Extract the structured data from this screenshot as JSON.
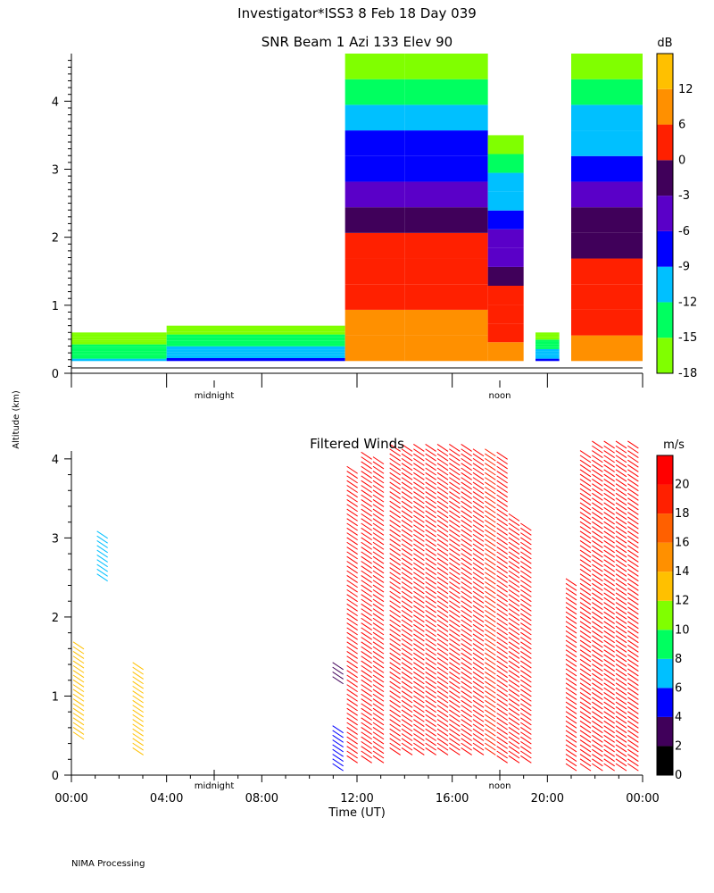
{
  "page": {
    "title": "Investigator*ISS3    8 Feb 18 Day 039",
    "footer": "NIMA Processing",
    "shared_ylabel": "Altitude (km)"
  },
  "chart_data": [
    {
      "type": "heatmap",
      "title": "SNR Beam 1 Azi 133 Elev 90",
      "ylim": [
        0,
        4.7
      ],
      "yticks": [
        0,
        1,
        2,
        3,
        4
      ],
      "xlim_hours": [
        0,
        24
      ],
      "x_markers": [
        {
          "hour": 6,
          "label": "midnight"
        },
        {
          "hour": 18,
          "label": "noon"
        }
      ],
      "colorbar": {
        "unit": "dB",
        "ticks": [
          -18,
          -15,
          -12,
          -9,
          -6,
          -3,
          0,
          6,
          12
        ],
        "bands": [
          {
            "from": -18,
            "to": -15,
            "color": "#80ff00"
          },
          {
            "from": -15,
            "to": -12,
            "color": "#00ff60"
          },
          {
            "from": -12,
            "to": -9,
            "color": "#00c0ff"
          },
          {
            "from": -9,
            "to": -6,
            "color": "#0000ff"
          },
          {
            "from": -6,
            "to": -3,
            "color": "#5a00c8"
          },
          {
            "from": -3,
            "to": 0,
            "color": "#40005a"
          },
          {
            "from": 0,
            "to": 6,
            "color": "#ff2000"
          },
          {
            "from": 6,
            "to": 12,
            "color": "#ff9000"
          },
          {
            "from": 12,
            "to": 16,
            "color": "#ffc000"
          }
        ]
      },
      "snr_regions": [
        {
          "t0": 0.0,
          "t1": 4.0,
          "top": 0.6,
          "peak_db": -12
        },
        {
          "t0": 4.0,
          "t1": 11.5,
          "top": 0.7,
          "peak_db": -9
        },
        {
          "t0": 11.5,
          "t1": 14.0,
          "top": 4.7,
          "peak_db": 10
        },
        {
          "t0": 14.0,
          "t1": 17.5,
          "top": 4.7,
          "peak_db": 10
        },
        {
          "t0": 17.5,
          "t1": 19.0,
          "top": 3.5,
          "peak_db": 6
        },
        {
          "t0": 19.5,
          "t1": 20.5,
          "top": 0.6,
          "peak_db": -9
        },
        {
          "t0": 21.0,
          "t1": 24.0,
          "top": 4.7,
          "peak_db": 8
        }
      ]
    },
    {
      "type": "scatter",
      "title": "Filtered Winds",
      "xlabel": "Time (UT)",
      "xticks": [
        "00:00",
        "04:00",
        "08:00",
        "12:00",
        "16:00",
        "20:00",
        "00:00"
      ],
      "xlim_hours": [
        0,
        24
      ],
      "ylim": [
        0,
        4.1
      ],
      "yticks": [
        0,
        1,
        2,
        3,
        4
      ],
      "x_markers": [
        {
          "hour": 6,
          "label": "midnight"
        },
        {
          "hour": 18,
          "label": "noon"
        }
      ],
      "colorbar": {
        "unit": "m/s",
        "ticks": [
          0,
          2,
          4,
          6,
          8,
          10,
          12,
          14,
          16,
          18,
          20
        ],
        "bands": [
          {
            "from": 0,
            "to": 2,
            "color": "#000000"
          },
          {
            "from": 2,
            "to": 4,
            "color": "#40005a"
          },
          {
            "from": 4,
            "to": 6,
            "color": "#0000ff"
          },
          {
            "from": 6,
            "to": 8,
            "color": "#00c0ff"
          },
          {
            "from": 8,
            "to": 10,
            "color": "#00ff60"
          },
          {
            "from": 10,
            "to": 12,
            "color": "#80ff00"
          },
          {
            "from": 12,
            "to": 14,
            "color": "#ffc000"
          },
          {
            "from": 14,
            "to": 16,
            "color": "#ff9000"
          },
          {
            "from": 16,
            "to": 18,
            "color": "#ff6000"
          },
          {
            "from": 18,
            "to": 20,
            "color": "#ff2000"
          },
          {
            "from": 20,
            "to": 22,
            "color": "#ff0000"
          }
        ]
      },
      "wind_profiles": [
        {
          "hour": 0.3,
          "alt0": 0.5,
          "alt1": 1.7,
          "speed": 13
        },
        {
          "hour": 1.3,
          "alt0": 2.5,
          "alt1": 3.1,
          "speed": 7
        },
        {
          "hour": 2.8,
          "alt0": 0.3,
          "alt1": 1.4,
          "speed": 13
        },
        {
          "hour": 11.2,
          "alt0": 0.1,
          "alt1": 0.6,
          "speed": 4
        },
        {
          "hour": 11.2,
          "alt0": 1.2,
          "alt1": 1.4,
          "speed": 3
        },
        {
          "hour": 11.8,
          "alt0": 0.2,
          "alt1": 3.9,
          "speed": 20
        },
        {
          "hour": 12.4,
          "alt0": 0.2,
          "alt1": 4.1,
          "speed": 20
        },
        {
          "hour": 12.9,
          "alt0": 0.2,
          "alt1": 4.0,
          "speed": 20
        },
        {
          "hour": 13.6,
          "alt0": 0.3,
          "alt1": 4.2,
          "speed": 21
        },
        {
          "hour": 14.1,
          "alt0": 0.3,
          "alt1": 4.2,
          "speed": 21
        },
        {
          "hour": 14.6,
          "alt0": 0.3,
          "alt1": 4.2,
          "speed": 21
        },
        {
          "hour": 15.1,
          "alt0": 0.3,
          "alt1": 4.2,
          "speed": 21
        },
        {
          "hour": 15.6,
          "alt0": 0.3,
          "alt1": 4.2,
          "speed": 21
        },
        {
          "hour": 16.1,
          "alt0": 0.3,
          "alt1": 4.2,
          "speed": 21
        },
        {
          "hour": 16.6,
          "alt0": 0.3,
          "alt1": 4.2,
          "speed": 21
        },
        {
          "hour": 17.1,
          "alt0": 0.3,
          "alt1": 4.1,
          "speed": 21
        },
        {
          "hour": 17.6,
          "alt0": 0.3,
          "alt1": 4.1,
          "speed": 19
        },
        {
          "hour": 18.1,
          "alt0": 0.2,
          "alt1": 4.1,
          "speed": 20
        },
        {
          "hour": 18.6,
          "alt0": 0.2,
          "alt1": 3.3,
          "speed": 20
        },
        {
          "hour": 19.1,
          "alt0": 0.2,
          "alt1": 3.2,
          "speed": 20
        },
        {
          "hour": 21.0,
          "alt0": 0.1,
          "alt1": 2.5,
          "speed": 20
        },
        {
          "hour": 21.6,
          "alt0": 0.1,
          "alt1": 4.1,
          "speed": 21
        },
        {
          "hour": 22.1,
          "alt0": 0.1,
          "alt1": 4.2,
          "speed": 21
        },
        {
          "hour": 22.6,
          "alt0": 0.1,
          "alt1": 4.2,
          "speed": 21
        },
        {
          "hour": 23.1,
          "alt0": 0.1,
          "alt1": 4.2,
          "speed": 21
        },
        {
          "hour": 23.6,
          "alt0": 0.1,
          "alt1": 4.2,
          "speed": 21
        }
      ]
    }
  ]
}
